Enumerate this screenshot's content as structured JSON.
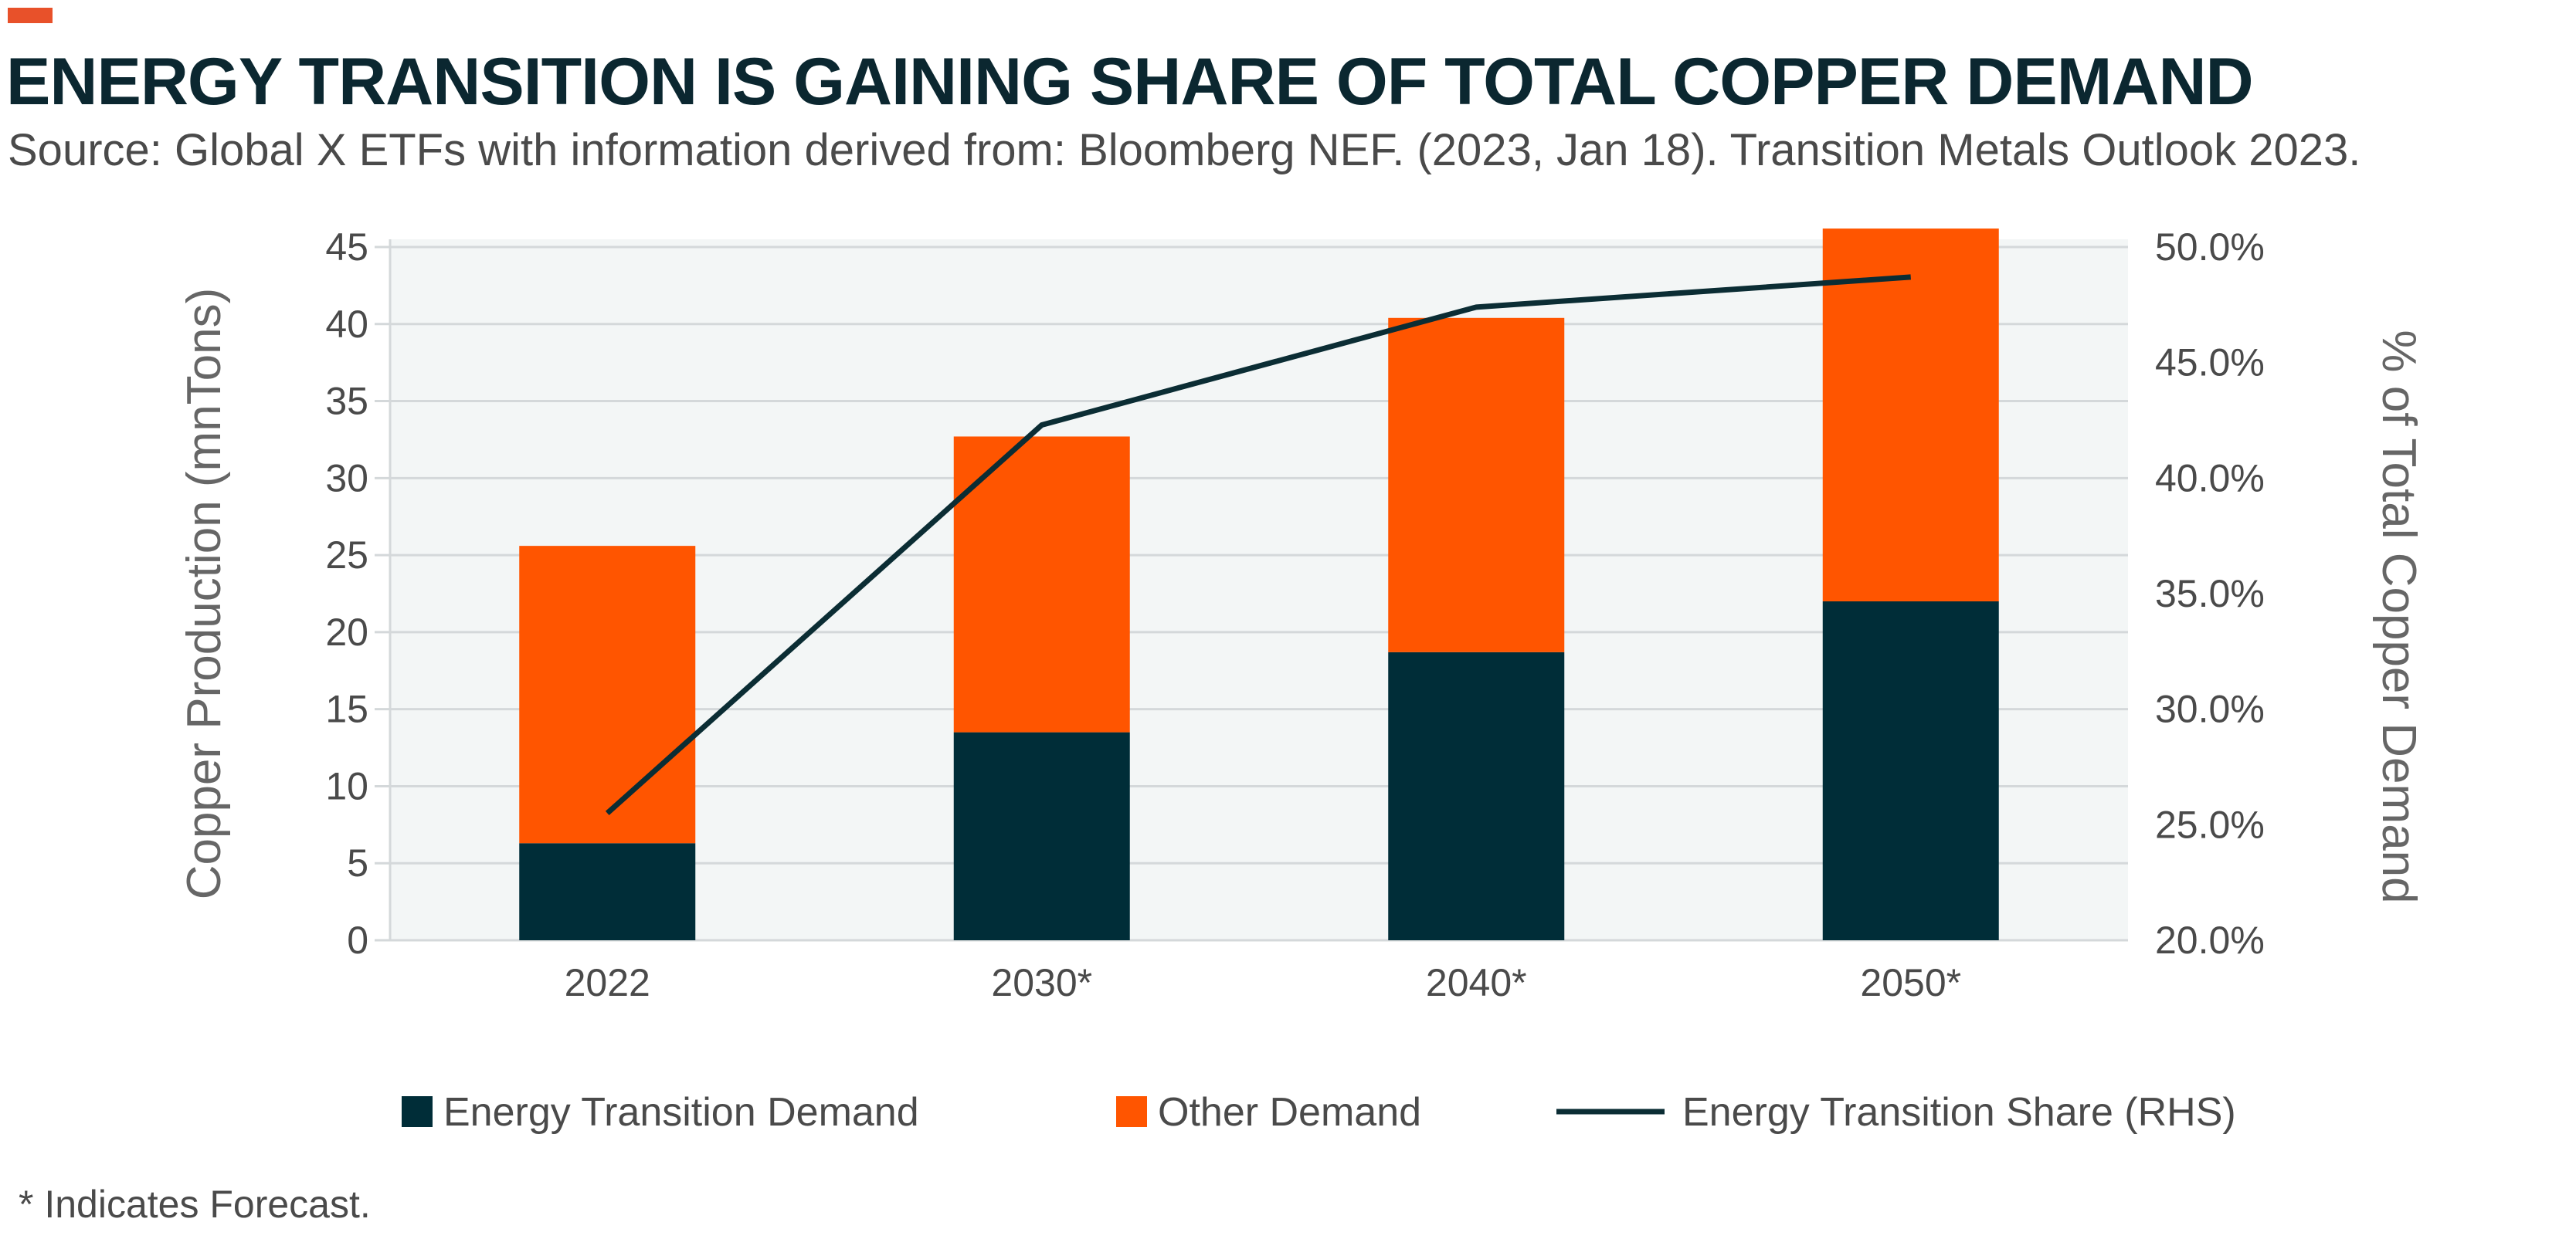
{
  "header": {
    "title": "ENERGY TRANSITION IS GAINING SHARE OF TOTAL COPPER DEMAND",
    "subtitle": "Source: Global X ETFs with information derived from: Bloomberg NEF. (2023, Jan 18). Transition Metals Outlook 2023.",
    "accent_color": "#e8512a"
  },
  "footnote": "* Indicates Forecast.",
  "colors": {
    "energy_transition": "#002d38",
    "other": "#ff5500",
    "line": "#0b2d34",
    "plot_bg": "#f3f6f6",
    "gridline": "#d4d8da",
    "text": "#4a4a4a"
  },
  "chart_data": {
    "type": "bar",
    "stacked": true,
    "categories": [
      "2022",
      "2030*",
      "2040*",
      "2050*"
    ],
    "series": [
      {
        "name": "Energy Transition Demand",
        "type": "bar",
        "axis": "left",
        "values": [
          6.3,
          13.5,
          18.7,
          22.0
        ]
      },
      {
        "name": "Other Demand",
        "type": "bar",
        "axis": "left",
        "values": [
          19.3,
          19.2,
          21.7,
          24.2
        ]
      },
      {
        "name": "Energy Transition Share (RHS)",
        "type": "line",
        "axis": "right",
        "values": [
          25.5,
          42.3,
          47.4,
          48.7
        ]
      }
    ],
    "ylabel": "Copper Production (mnTons)",
    "y2label": "% of Total Copper Demand",
    "ylim": [
      0,
      45
    ],
    "yticks": [
      "0",
      "5",
      "10",
      "15",
      "20",
      "25",
      "30",
      "35",
      "40",
      "45"
    ],
    "y2lim": [
      20,
      50
    ],
    "y2ticks": [
      "20.0%",
      "25.0%",
      "30.0%",
      "35.0%",
      "40.0%",
      "45.0%",
      "50.0%"
    ],
    "grid": true,
    "legend_position": "bottom"
  }
}
